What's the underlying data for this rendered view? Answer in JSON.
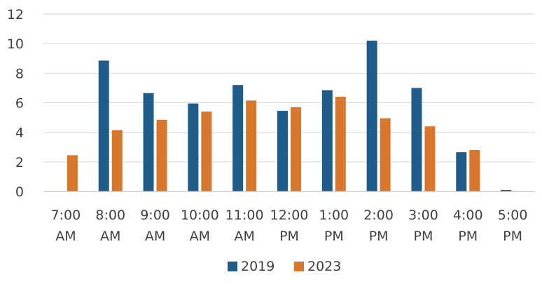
{
  "chart_data": {
    "type": "bar",
    "categories": [
      [
        "7:00",
        "AM"
      ],
      [
        "8:00",
        "AM"
      ],
      [
        "9:00",
        "AM"
      ],
      [
        "10:00",
        "AM"
      ],
      [
        "11:00",
        "AM"
      ],
      [
        "12:00",
        "PM"
      ],
      [
        "1:00",
        "PM"
      ],
      [
        "2:00",
        "PM"
      ],
      [
        "3:00",
        "PM"
      ],
      [
        "4:00",
        "PM"
      ],
      [
        "5:00",
        "PM"
      ]
    ],
    "series": [
      {
        "name": "2019",
        "color": "#1F5C8A",
        "values": [
          0,
          8.85,
          6.65,
          5.95,
          7.2,
          5.45,
          6.85,
          10.2,
          7.0,
          2.65,
          0.1
        ]
      },
      {
        "name": "2023",
        "color": "#D9782D",
        "values": [
          2.45,
          4.15,
          4.85,
          5.4,
          6.15,
          5.7,
          6.4,
          4.95,
          4.4,
          2.8,
          0
        ]
      }
    ],
    "ylim": [
      0,
      12
    ],
    "yticks": [
      0,
      2,
      4,
      6,
      8,
      10,
      12
    ],
    "grid": true,
    "legend_position": "bottom",
    "title": "",
    "xlabel": "",
    "ylabel": ""
  }
}
